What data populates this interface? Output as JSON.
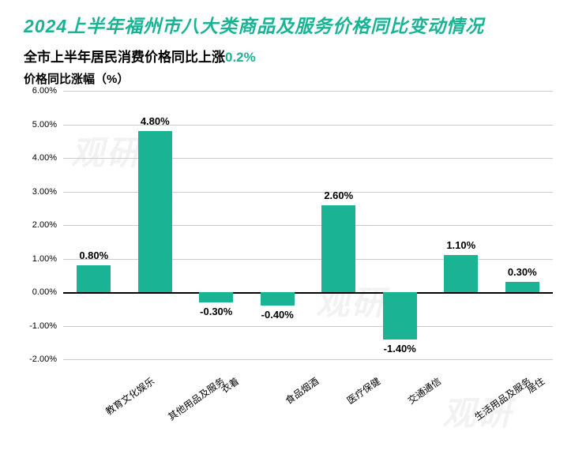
{
  "title": {
    "text": "2024上半年福州市八大类商品及服务价格同比变动情况",
    "color": "#1ab394",
    "fontsize": 23
  },
  "subtitle": {
    "prefix": "全市上半年居民消费价格同比上涨",
    "value": "0.2%",
    "prefix_color": "#000000",
    "value_color": "#1ab394",
    "fontsize": 17
  },
  "ylabel": {
    "text": "价格同比涨幅（%）",
    "color": "#000000",
    "fontsize": 15
  },
  "chart": {
    "type": "bar",
    "categories": [
      "教育文化娱乐",
      "其他用品及服务",
      "衣着",
      "食品烟酒",
      "医疗保健",
      "交通通信",
      "生活用品及服务",
      "居住"
    ],
    "values": [
      0.8,
      4.8,
      -0.3,
      -0.4,
      2.6,
      -1.4,
      1.1,
      0.3
    ],
    "value_labels": [
      "0.80%",
      "4.80%",
      "-0.30%",
      "-0.40%",
      "2.60%",
      "-1.40%",
      "1.10%",
      "0.30%"
    ],
    "bar_color": "#1ab394",
    "ylim": [
      -2,
      6
    ],
    "yticks": [
      -2.0,
      -1.0,
      0.0,
      1.0,
      2.0,
      3.0,
      4.0,
      5.0,
      6.0
    ],
    "ytick_labels": [
      "-2.00%",
      "-1.00%",
      "0.00%",
      "1.00%",
      "2.00%",
      "3.00%",
      "4.00%",
      "5.00%",
      "6.00%"
    ],
    "grid_color": "#cccccc",
    "axis_color": "#000000",
    "background_color": "#ffffff",
    "bar_width_ratio": 0.55,
    "tick_fontsize": 11,
    "label_fontsize": 13,
    "xlabel_fontsize": 12,
    "xlabel_rotation": -35
  },
  "watermark": {
    "text": "观研",
    "color": "#f2f2f2"
  }
}
